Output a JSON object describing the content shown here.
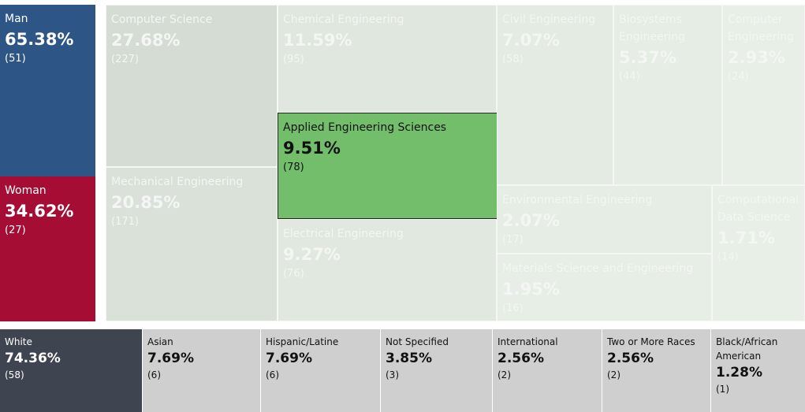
{
  "gender": [
    {
      "label": "Man",
      "percent": "65.38%",
      "count": "(51)"
    },
    {
      "label": "Woman",
      "percent": "34.62%",
      "count": "(27)"
    }
  ],
  "majors": [
    {
      "label": "Computer Science",
      "percent": "27.68%",
      "count": "(227)"
    },
    {
      "label": "Mechanical Engineering",
      "percent": "20.85%",
      "count": "(171)"
    },
    {
      "label": "Chemical Engineering",
      "percent": "11.59%",
      "count": "(95)"
    },
    {
      "label": "Applied Engineering Sciences",
      "percent": "9.51%",
      "count": "(78)"
    },
    {
      "label": "Electrical Engineering",
      "percent": "9.27%",
      "count": "(76)"
    },
    {
      "label": "Civil Engineering",
      "percent": "7.07%",
      "count": "(58)"
    },
    {
      "label": "Biosystems Engineering",
      "percent": "5.37%",
      "count": "(44)"
    },
    {
      "label": "Computer Engineering",
      "percent": "2.93%",
      "count": "(24)"
    },
    {
      "label": "Environmental Engineering",
      "percent": "2.07%",
      "count": "(17)"
    },
    {
      "label": "Materials Science and Engineering",
      "percent": "1.95%",
      "count": "(16)"
    },
    {
      "label": "Computational Data Science",
      "percent": "1.71%",
      "count": "(14)"
    }
  ],
  "race": [
    {
      "label": "White",
      "percent": "74.36%",
      "count": "(58)"
    },
    {
      "label": "Asian",
      "percent": "7.69%",
      "count": "(6)"
    },
    {
      "label": "Hispanic/Latine",
      "percent": "7.69%",
      "count": "(6)"
    },
    {
      "label": "Not Specified",
      "percent": "3.85%",
      "count": "(3)"
    },
    {
      "label": "International",
      "percent": "2.56%",
      "count": "(2)"
    },
    {
      "label": "Two or More Races",
      "percent": "2.56%",
      "count": "(2)"
    },
    {
      "label": "Black/African American",
      "percent": "1.28%",
      "count": "(1)"
    }
  ]
}
